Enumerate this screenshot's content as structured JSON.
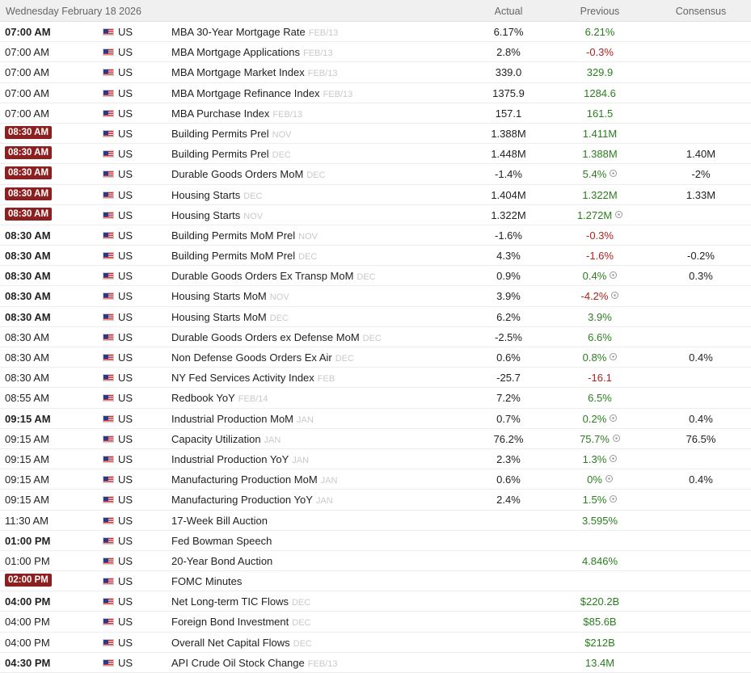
{
  "header": {
    "date": "Wednesday February 18 2026",
    "actual_label": "Actual",
    "previous_label": "Previous",
    "consensus_label": "Consensus"
  },
  "colors": {
    "positive": "#2a7d1e",
    "negative": "#b0201e",
    "badge": "#8c1f1f"
  },
  "events": [
    {
      "time": "07:00 AM",
      "style": "bold",
      "country": "US",
      "event": "MBA 30-Year Mortgage Rate",
      "period": "FEB/13",
      "actual": "6.17%",
      "previous": "6.21%",
      "prev_color": "pos",
      "revised": false,
      "consensus": ""
    },
    {
      "time": "07:00 AM",
      "style": "normal",
      "country": "US",
      "event": "MBA Mortgage Applications",
      "period": "FEB/13",
      "actual": "2.8%",
      "previous": "-0.3%",
      "prev_color": "neg",
      "revised": false,
      "consensus": ""
    },
    {
      "time": "07:00 AM",
      "style": "normal",
      "country": "US",
      "event": "MBA Mortgage Market Index",
      "period": "FEB/13",
      "actual": "339.0",
      "previous": "329.9",
      "prev_color": "pos",
      "revised": false,
      "consensus": ""
    },
    {
      "time": "07:00 AM",
      "style": "normal",
      "country": "US",
      "event": "MBA Mortgage Refinance Index",
      "period": "FEB/13",
      "actual": "1375.9",
      "previous": "1284.6",
      "prev_color": "pos",
      "revised": false,
      "consensus": ""
    },
    {
      "time": "07:00 AM",
      "style": "normal",
      "country": "US",
      "event": "MBA Purchase Index",
      "period": "FEB/13",
      "actual": "157.1",
      "previous": "161.5",
      "prev_color": "pos",
      "revised": false,
      "consensus": ""
    },
    {
      "time": "08:30 AM",
      "style": "badge",
      "country": "US",
      "event": "Building Permits Prel",
      "period": "NOV",
      "actual": "1.388M",
      "previous": "1.411M",
      "prev_color": "pos",
      "revised": false,
      "consensus": ""
    },
    {
      "time": "08:30 AM",
      "style": "badge",
      "country": "US",
      "event": "Building Permits Prel",
      "period": "DEC",
      "actual": "1.448M",
      "previous": "1.388M",
      "prev_color": "pos",
      "revised": false,
      "consensus": "1.40M"
    },
    {
      "time": "08:30 AM",
      "style": "badge",
      "country": "US",
      "event": "Durable Goods Orders MoM",
      "period": "DEC",
      "actual": "-1.4%",
      "previous": "5.4%",
      "prev_color": "pos",
      "revised": true,
      "consensus": "-2%"
    },
    {
      "time": "08:30 AM",
      "style": "badge",
      "country": "US",
      "event": "Housing Starts",
      "period": "DEC",
      "actual": "1.404M",
      "previous": "1.322M",
      "prev_color": "pos",
      "revised": false,
      "consensus": "1.33M"
    },
    {
      "time": "08:30 AM",
      "style": "badge",
      "country": "US",
      "event": "Housing Starts",
      "period": "NOV",
      "actual": "1.322M",
      "previous": "1.272M",
      "prev_color": "pos",
      "revised": true,
      "consensus": ""
    },
    {
      "time": "08:30 AM",
      "style": "bold",
      "country": "US",
      "event": "Building Permits MoM Prel",
      "period": "NOV",
      "actual": "-1.6%",
      "previous": "-0.3%",
      "prev_color": "neg",
      "revised": false,
      "consensus": ""
    },
    {
      "time": "08:30 AM",
      "style": "bold",
      "country": "US",
      "event": "Building Permits MoM Prel",
      "period": "DEC",
      "actual": "4.3%",
      "previous": "-1.6%",
      "prev_color": "neg",
      "revised": false,
      "consensus": "-0.2%"
    },
    {
      "time": "08:30 AM",
      "style": "bold",
      "country": "US",
      "event": "Durable Goods Orders Ex Transp MoM",
      "period": "DEC",
      "actual": "0.9%",
      "previous": "0.4%",
      "prev_color": "pos",
      "revised": true,
      "consensus": "0.3%"
    },
    {
      "time": "08:30 AM",
      "style": "bold",
      "country": "US",
      "event": "Housing Starts MoM",
      "period": "NOV",
      "actual": "3.9%",
      "previous": "-4.2%",
      "prev_color": "neg",
      "revised": true,
      "consensus": ""
    },
    {
      "time": "08:30 AM",
      "style": "bold",
      "country": "US",
      "event": "Housing Starts MoM",
      "period": "DEC",
      "actual": "6.2%",
      "previous": "3.9%",
      "prev_color": "pos",
      "revised": false,
      "consensus": ""
    },
    {
      "time": "08:30 AM",
      "style": "normal",
      "country": "US",
      "event": "Durable Goods Orders ex Defense MoM",
      "period": "DEC",
      "actual": "-2.5%",
      "previous": "6.6%",
      "prev_color": "pos",
      "revised": false,
      "consensus": ""
    },
    {
      "time": "08:30 AM",
      "style": "normal",
      "country": "US",
      "event": "Non Defense Goods Orders Ex Air",
      "period": "DEC",
      "actual": "0.6%",
      "previous": "0.8%",
      "prev_color": "pos",
      "revised": true,
      "consensus": "0.4%"
    },
    {
      "time": "08:30 AM",
      "style": "normal",
      "country": "US",
      "event": "NY Fed Services Activity Index",
      "period": "FEB",
      "actual": "-25.7",
      "previous": "-16.1",
      "prev_color": "neg",
      "revised": false,
      "consensus": ""
    },
    {
      "time": "08:55 AM",
      "style": "normal",
      "country": "US",
      "event": "Redbook YoY",
      "period": "FEB/14",
      "actual": "7.2%",
      "previous": "6.5%",
      "prev_color": "pos",
      "revised": false,
      "consensus": ""
    },
    {
      "time": "09:15 AM",
      "style": "bold",
      "country": "US",
      "event": "Industrial Production MoM",
      "period": "JAN",
      "actual": "0.7%",
      "previous": "0.2%",
      "prev_color": "pos",
      "revised": true,
      "consensus": "0.4%"
    },
    {
      "time": "09:15 AM",
      "style": "normal",
      "country": "US",
      "event": "Capacity Utilization",
      "period": "JAN",
      "actual": "76.2%",
      "previous": "75.7%",
      "prev_color": "pos",
      "revised": true,
      "consensus": "76.5%"
    },
    {
      "time": "09:15 AM",
      "style": "normal",
      "country": "US",
      "event": "Industrial Production YoY",
      "period": "JAN",
      "actual": "2.3%",
      "previous": "1.3%",
      "prev_color": "pos",
      "revised": true,
      "consensus": ""
    },
    {
      "time": "09:15 AM",
      "style": "normal",
      "country": "US",
      "event": "Manufacturing Production MoM",
      "period": "JAN",
      "actual": "0.6%",
      "previous": "0%",
      "prev_color": "pos",
      "revised": true,
      "consensus": "0.4%"
    },
    {
      "time": "09:15 AM",
      "style": "normal",
      "country": "US",
      "event": "Manufacturing Production YoY",
      "period": "JAN",
      "actual": "2.4%",
      "previous": "1.5%",
      "prev_color": "pos",
      "revised": true,
      "consensus": ""
    },
    {
      "time": "11:30 AM",
      "style": "normal",
      "country": "US",
      "event": "17-Week Bill Auction",
      "period": "",
      "actual": "",
      "previous": "3.595%",
      "prev_color": "pos",
      "revised": false,
      "consensus": ""
    },
    {
      "time": "01:00 PM",
      "style": "bold",
      "country": "US",
      "event": "Fed Bowman Speech",
      "period": "",
      "actual": "",
      "previous": "",
      "prev_color": "pos",
      "revised": false,
      "consensus": ""
    },
    {
      "time": "01:00 PM",
      "style": "normal",
      "country": "US",
      "event": "20-Year Bond Auction",
      "period": "",
      "actual": "",
      "previous": "4.846%",
      "prev_color": "pos",
      "revised": false,
      "consensus": ""
    },
    {
      "time": "02:00 PM",
      "style": "badge",
      "country": "US",
      "event": "FOMC Minutes",
      "period": "",
      "actual": "",
      "previous": "",
      "prev_color": "pos",
      "revised": false,
      "consensus": ""
    },
    {
      "time": "04:00 PM",
      "style": "bold",
      "country": "US",
      "event": "Net Long-term TIC Flows",
      "period": "DEC",
      "actual": "",
      "previous": "$220.2B",
      "prev_color": "pos",
      "revised": false,
      "consensus": ""
    },
    {
      "time": "04:00 PM",
      "style": "normal",
      "country": "US",
      "event": "Foreign Bond Investment",
      "period": "DEC",
      "actual": "",
      "previous": "$85.6B",
      "prev_color": "pos",
      "revised": false,
      "consensus": ""
    },
    {
      "time": "04:00 PM",
      "style": "normal",
      "country": "US",
      "event": "Overall Net Capital Flows",
      "period": "DEC",
      "actual": "",
      "previous": "$212B",
      "prev_color": "pos",
      "revised": false,
      "consensus": ""
    },
    {
      "time": "04:30 PM",
      "style": "bold",
      "country": "US",
      "event": "API Crude Oil Stock Change",
      "period": "FEB/13",
      "actual": "",
      "previous": "13.4M",
      "prev_color": "pos",
      "revised": false,
      "consensus": ""
    }
  ]
}
